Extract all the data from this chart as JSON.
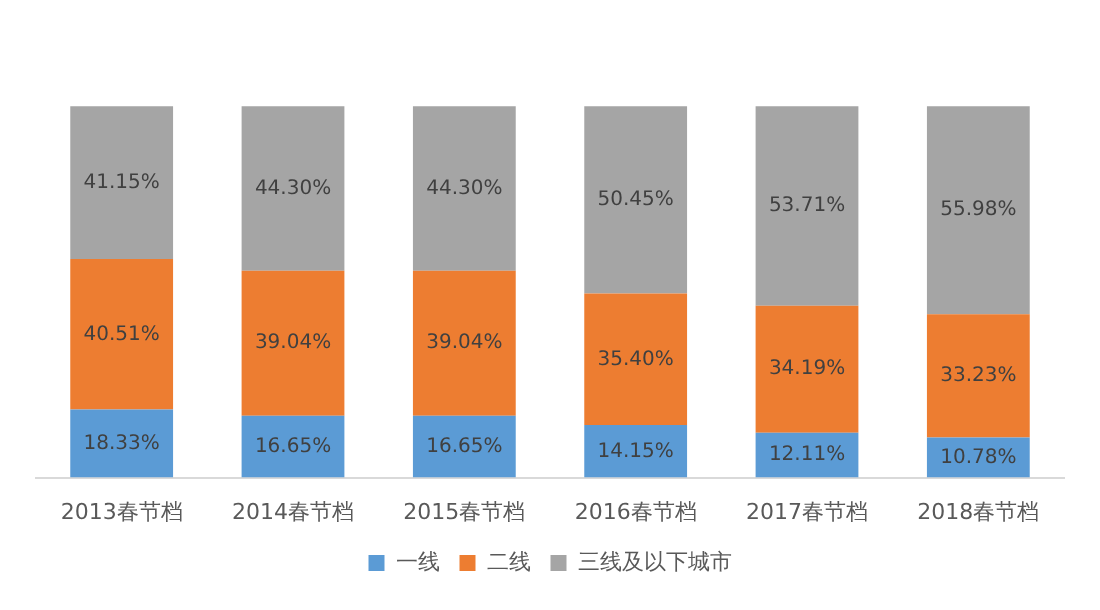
{
  "chart_data": {
    "type": "bar",
    "stacked": true,
    "legend": "bottom",
    "tick_labels": "x",
    "grid": false,
    "categories": [
      "2013春节档",
      "2014春节档",
      "2015春节档",
      "2016春节档",
      "2017春节档",
      "2018春节档"
    ],
    "series": [
      {
        "name": "一线",
        "color": "#5b9bd5",
        "values": [
          18.33,
          16.65,
          16.65,
          14.15,
          12.11,
          10.78
        ],
        "value_labels": [
          "18.33%",
          "16.65%",
          "16.65%",
          "14.15%",
          "12.11%",
          "10.78%"
        ]
      },
      {
        "name": "二线",
        "color": "#ed7d31",
        "values": [
          40.51,
          39.04,
          39.04,
          35.4,
          34.19,
          33.23
        ],
        "value_labels": [
          "40.51%",
          "39.04%",
          "39.04%",
          "35.40%",
          "34.19%",
          "33.23%"
        ]
      },
      {
        "name": "三线及以下城市",
        "color": "#a5a5a5",
        "values": [
          41.15,
          44.3,
          44.3,
          50.45,
          53.71,
          55.98
        ],
        "value_labels": [
          "41.15%",
          "44.30%",
          "44.30%",
          "50.45%",
          "53.71%",
          "55.98%"
        ]
      }
    ]
  }
}
